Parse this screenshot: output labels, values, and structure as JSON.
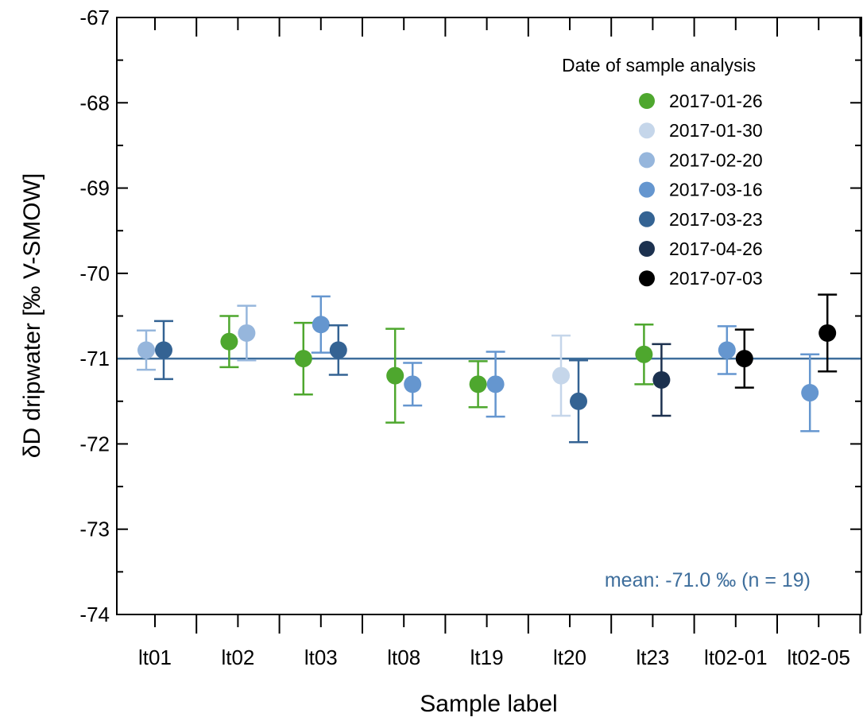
{
  "chart_data": {
    "type": "scatter",
    "title": "",
    "xlabel": "Sample label",
    "ylabel": "δD dripwater [‰ V-SMOW]",
    "ylim": [
      -74,
      -67
    ],
    "yticks": [
      -67,
      -68,
      -69,
      -70,
      -71,
      -72,
      -73,
      -74
    ],
    "categories": [
      "lt01",
      "lt02",
      "lt03",
      "lt08",
      "lt19",
      "lt20",
      "lt23",
      "lt02-01",
      "lt02-05"
    ],
    "grid": false,
    "legend": {
      "title": "Date of sample analysis",
      "placement": "top-right"
    },
    "series": [
      {
        "name": "2017-01-26",
        "color": "#4ea72e",
        "points": [
          {
            "category": "lt02",
            "y": -70.8,
            "err_low": -71.1,
            "err_high": -70.5
          },
          {
            "category": "lt03",
            "y": -71.0,
            "err_low": -71.42,
            "err_high": -70.58
          },
          {
            "category": "lt08",
            "y": -71.2,
            "err_low": -71.75,
            "err_high": -70.65
          },
          {
            "category": "lt19",
            "y": -71.3,
            "err_low": -71.57,
            "err_high": -71.03
          },
          {
            "category": "lt23",
            "y": -70.95,
            "err_low": -71.3,
            "err_high": -70.6
          }
        ]
      },
      {
        "name": "2017-01-30",
        "color": "#c5d6ea",
        "points": [
          {
            "category": "lt20",
            "y": -71.2,
            "err_low": -71.67,
            "err_high": -70.73
          }
        ]
      },
      {
        "name": "2017-02-20",
        "color": "#96b6dc",
        "points": [
          {
            "category": "lt01",
            "y": -70.9,
            "err_low": -71.13,
            "err_high": -70.67
          },
          {
            "category": "lt02",
            "y": -70.7,
            "err_low": -71.02,
            "err_high": -70.38
          }
        ]
      },
      {
        "name": "2017-03-16",
        "color": "#6596cf",
        "points": [
          {
            "category": "lt03",
            "y": -70.6,
            "err_low": -70.93,
            "err_high": -70.27
          },
          {
            "category": "lt08",
            "y": -71.3,
            "err_low": -71.55,
            "err_high": -71.05
          },
          {
            "category": "lt19",
            "y": -71.3,
            "err_low": -71.68,
            "err_high": -70.92
          },
          {
            "category": "lt02-01",
            "y": -70.9,
            "err_low": -71.18,
            "err_high": -70.62
          },
          {
            "category": "lt02-05",
            "y": -71.4,
            "err_low": -71.85,
            "err_high": -70.95
          }
        ]
      },
      {
        "name": "2017-03-23",
        "color": "#346393",
        "points": [
          {
            "category": "lt01",
            "y": -70.9,
            "err_low": -71.24,
            "err_high": -70.56
          },
          {
            "category": "lt03",
            "y": -70.9,
            "err_low": -71.19,
            "err_high": -70.61
          },
          {
            "category": "lt20",
            "y": -71.5,
            "err_low": -71.98,
            "err_high": -71.02
          }
        ]
      },
      {
        "name": "2017-04-26",
        "color": "#1c314f",
        "points": [
          {
            "category": "lt23",
            "y": -71.25,
            "err_low": -71.67,
            "err_high": -70.83
          }
        ]
      },
      {
        "name": "2017-07-03",
        "color": "#000000",
        "points": [
          {
            "category": "lt02-01",
            "y": -71.0,
            "err_low": -71.34,
            "err_high": -70.66
          },
          {
            "category": "lt02-05",
            "y": -70.7,
            "err_low": -71.15,
            "err_high": -70.25
          }
        ]
      }
    ],
    "mean_line": {
      "y": -71.0,
      "color": "#3e6e9c",
      "label": "mean: -71.0 ‰ (n = 19)"
    }
  }
}
